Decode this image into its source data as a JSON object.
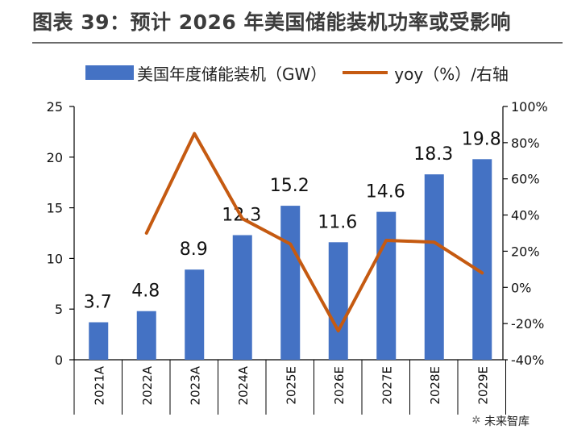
{
  "header": {
    "title": "图表 39：预计 2026 年美国储能装机功率或受影响"
  },
  "legend": {
    "bar_label": "美国年度储能装机（GW）",
    "line_label": "yoy（%）/右轴"
  },
  "watermark": {
    "text": "未来智库"
  },
  "colors": {
    "bar": "#4472c4",
    "line": "#c55a11",
    "axis": "#000000"
  },
  "chart_data": {
    "type": "bar",
    "title": "图表 39：预计 2026 年美国储能装机功率或受影响",
    "categories": [
      "2021A",
      "2022A",
      "2023A",
      "2024A",
      "2025E",
      "2026E",
      "2027E",
      "2028E",
      "2029E"
    ],
    "series": [
      {
        "name": "美国年度储能装机（GW）",
        "type": "bar",
        "axis": "left",
        "values": [
          3.7,
          4.8,
          8.9,
          12.3,
          15.2,
          11.6,
          14.6,
          18.3,
          19.8
        ],
        "labels": [
          "3.7",
          "4.8",
          "8.9",
          "12.3",
          "15.2",
          "11.6",
          "14.6",
          "18.3",
          "19.8"
        ]
      },
      {
        "name": "yoy（%）/右轴",
        "type": "line",
        "axis": "right",
        "values": [
          null,
          30,
          85,
          38,
          24,
          -24,
          26,
          25,
          8
        ]
      }
    ],
    "left_axis": {
      "ylim": [
        0,
        25
      ],
      "ticks": [
        0,
        5,
        10,
        15,
        20,
        25
      ],
      "tick_labels": [
        "0",
        "5",
        "10",
        "15",
        "20",
        "25"
      ]
    },
    "right_axis": {
      "ylim": [
        -40,
        100
      ],
      "ticks": [
        -40,
        -20,
        0,
        20,
        40,
        60,
        80,
        100
      ],
      "tick_labels": [
        "-40%",
        "-20%",
        "0%",
        "20%",
        "40%",
        "60%",
        "80%",
        "100%"
      ]
    },
    "xlabel": "",
    "ylabel": "",
    "grid": false,
    "legend_position": "top"
  }
}
